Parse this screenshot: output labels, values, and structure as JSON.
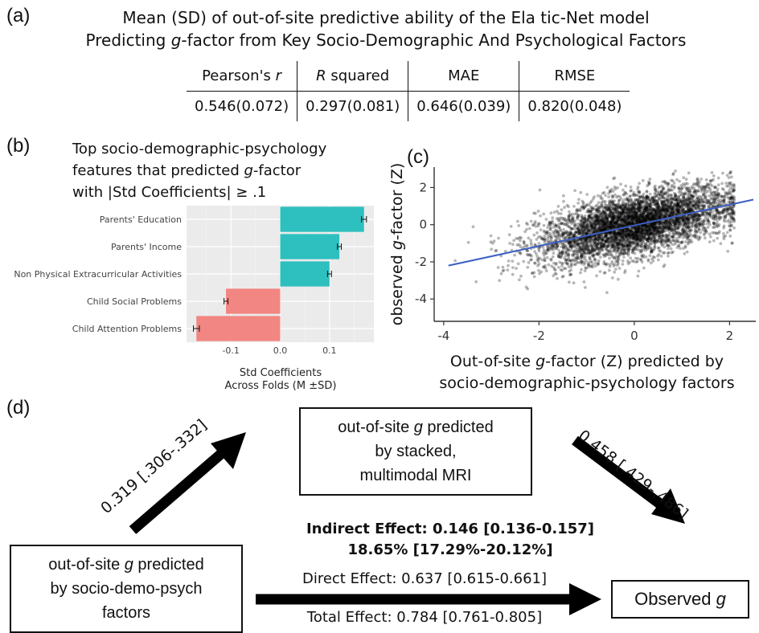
{
  "panel_a": {
    "letter": "(a)",
    "title_line1": "Mean (SD) of out-of-site predictive ability of the Ela tic-Net model",
    "title_line2": [
      "Predicting ",
      "g",
      "-factor from Key Socio-Demographic And Psychological Factors"
    ],
    "headers": [
      [
        "Pearson's ",
        "r"
      ],
      [
        "R",
        " squared"
      ],
      [
        "MAE",
        ""
      ],
      [
        "RMSE",
        ""
      ]
    ],
    "values": [
      "0.546(0.072)",
      "0.297(0.081)",
      "0.646(0.039)",
      "0.820(0.048)"
    ]
  },
  "panel_b": {
    "letter": "(b)",
    "title_line1": "Top socio-demographic-psychology",
    "title_line2": [
      "features that predicted ",
      "g",
      "-factor"
    ],
    "title_line3": "with |Std Coefficients| ≥ .1",
    "colors": {
      "positive": "#2EBFBF",
      "negative": "#F28682"
    }
  },
  "panel_c": {
    "letter": "(c)",
    "colors": {
      "points": "#000000",
      "fit_line": "#3B5FC4"
    }
  },
  "panel_d": {
    "letter": "(d)",
    "mediator_box": [
      "out-of-site ",
      "g",
      " predicted",
      "by stacked,",
      "multimodal MRI"
    ],
    "predictor_box": [
      "out-of-site ",
      "g",
      " predicted",
      "by socio-demo-psych",
      "factors"
    ],
    "outcome_box": [
      "Observed ",
      "g"
    ],
    "path_a": "0.319 [.306-.332]",
    "path_b": "0.458 [.429-.486]",
    "indirect_label": "Indirect Effect:",
    "indirect_value": "0.146 [0.136-0.157]",
    "indirect_percent": "18.65% [17.29%-20.12%]",
    "direct": "Direct Effect: 0.637 [0.615-0.661]",
    "total": "Total Effect: 0.784 [0.761-0.805]"
  },
  "chart_data": [
    {
      "type": "bar",
      "orientation": "horizontal",
      "categories": [
        "Parents' Education",
        "Parents' Income",
        "Non Physical Extracurricular Activities",
        "Child Social Problems",
        "Child Attention Problems"
      ],
      "values": [
        0.17,
        0.12,
        0.1,
        -0.11,
        -0.17
      ],
      "errors": [
        0.005,
        0.004,
        0.004,
        0.004,
        0.006
      ],
      "xlabel": "Std Coefficients\nAcross Folds (M ±SD)",
      "ylabel": "",
      "xlim": [
        -0.19,
        0.19
      ],
      "xticks": [
        -0.1,
        0.0,
        0.1
      ],
      "grid": true
    },
    {
      "type": "scatter",
      "xlabel": [
        "Out-of-site ",
        "g",
        "-factor (Z) predicted by",
        "socio-demographic-psychology factors"
      ],
      "ylabel": [
        "observed ",
        "g",
        "-factor (Z)"
      ],
      "xlim": [
        -4.2,
        2.55
      ],
      "ylim": [
        -5.2,
        3.1
      ],
      "xticks": [
        -4,
        -2,
        0,
        2
      ],
      "yticks": [
        -4,
        -2,
        0,
        2
      ],
      "fit_line": {
        "x": [
          -3.9,
          2.5
        ],
        "y": [
          -2.2,
          1.35
        ]
      },
      "point_cloud": {
        "x_mean": 0.0,
        "x_sd": 1.0,
        "y_slope": 0.55,
        "residual_sd": 0.83,
        "approx_n": 5000
      },
      "grid": false
    }
  ]
}
